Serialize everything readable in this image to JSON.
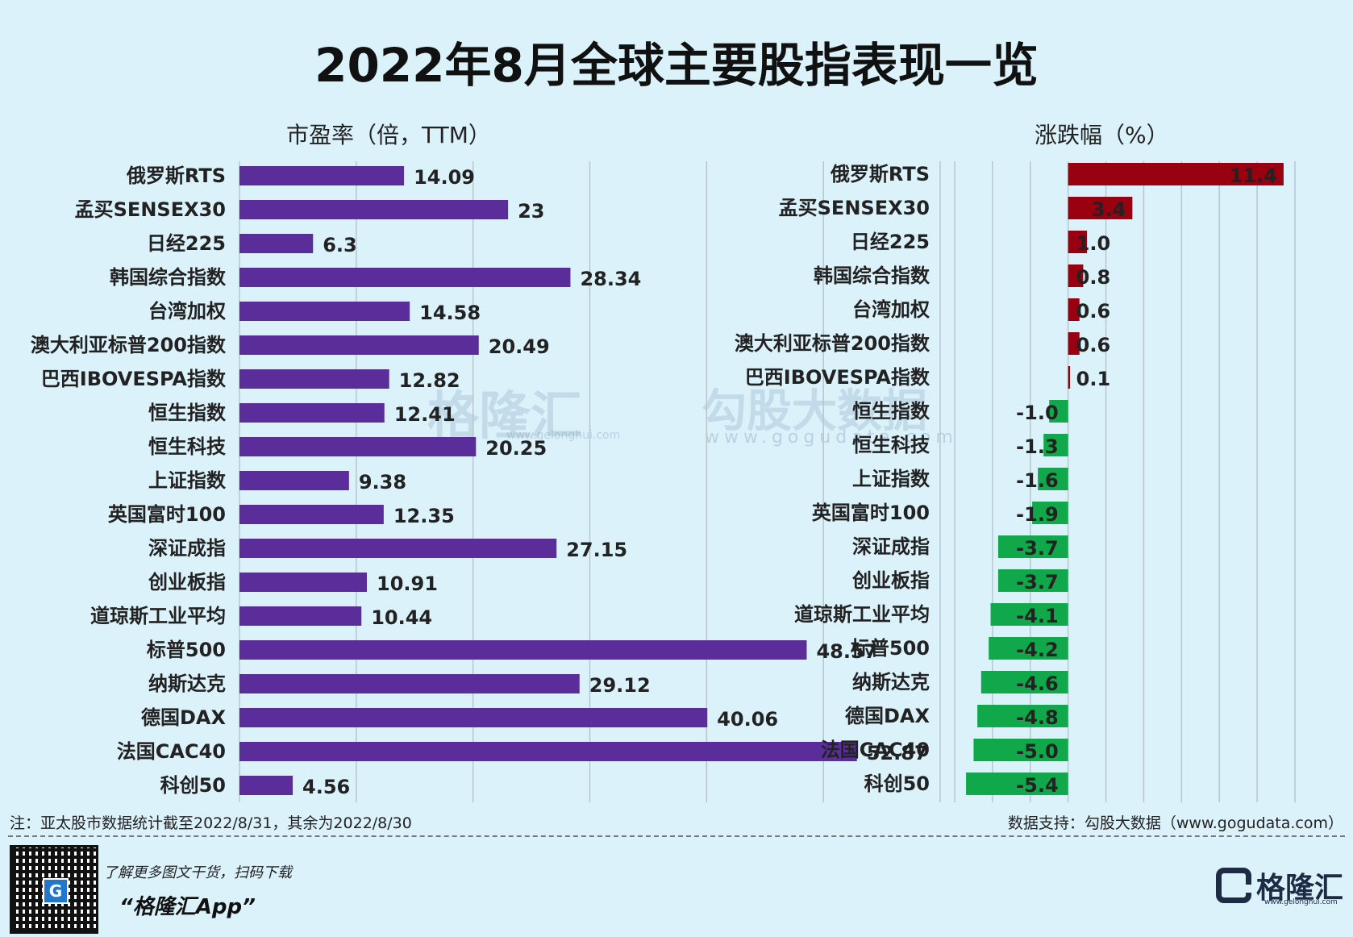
{
  "title": "2022年8月全球主要股指表现一览",
  "footnote": "注：亚太股市数据统计截至2022/8/31，其余为2022/8/30",
  "source": "数据支持：勾股大数据（www.gogudata.com）",
  "promo_line1": "了解更多图文干货，扫码下载",
  "promo_line2": "“格隆汇App”",
  "logo_text": "格隆汇",
  "logo_url": "www.gelonghui.com",
  "watermark1": "格隆汇",
  "watermark1_url": "www.gelonghui.com",
  "watermark2": "勾股大数据",
  "watermark2_url": "www.gogudata.com",
  "colors": {
    "pe_bar": "#5b2d9a",
    "gain": "#990010",
    "loss": "#11a84c",
    "grid": "#b8c6cc"
  },
  "chart_data": [
    {
      "type": "bar",
      "orientation": "horizontal",
      "title": "市盈率（倍，TTM）",
      "categories": [
        "俄罗斯RTS",
        "孟买SENSEX30",
        "日经225",
        "韩国综合指数",
        "台湾加权",
        "澳大利亚标普200指数",
        "巴西IBOVESPA指数",
        "恒生指数",
        "恒生科技",
        "上证指数",
        "英国富时100",
        "深证成指",
        "创业板指",
        "道琼斯工业平均",
        "标普500",
        "纳斯达克",
        "德国DAX",
        "法国CAC40",
        "科创50"
      ],
      "values": [
        14.09,
        23,
        6.3,
        28.34,
        14.58,
        20.49,
        12.82,
        12.41,
        20.25,
        9.38,
        12.35,
        27.15,
        10.91,
        10.44,
        48.57,
        29.12,
        40.06,
        52.87,
        4.56
      ],
      "value_labels": [
        "14.09",
        "23",
        "6.3",
        "28.34",
        "14.58",
        "20.49",
        "12.82",
        "12.41",
        "20.25",
        "9.38",
        "12.35",
        "27.15",
        "10.91",
        "10.44",
        "48.57",
        "29.12",
        "40.06",
        "52.87",
        "4.56"
      ],
      "xlim": [
        0,
        60
      ],
      "grid": true
    },
    {
      "type": "bar",
      "orientation": "horizontal",
      "title": "涨跌幅（%）",
      "categories": [
        "俄罗斯RTS",
        "孟买SENSEX30",
        "日经225",
        "韩国综合指数",
        "台湾加权",
        "澳大利亚标普200指数",
        "巴西IBOVESPA指数",
        "恒生指数",
        "恒生科技",
        "上证指数",
        "英国富时100",
        "深证成指",
        "创业板指",
        "道琼斯工业平均",
        "标普500",
        "纳斯达克",
        "德国DAX",
        "法国CAC40",
        "科创50"
      ],
      "values": [
        11.4,
        3.4,
        1.0,
        0.8,
        0.6,
        0.6,
        0.1,
        -1.0,
        -1.3,
        -1.6,
        -1.9,
        -3.7,
        -3.7,
        -4.1,
        -4.2,
        -4.6,
        -4.8,
        -5.0,
        -5.4
      ],
      "value_labels": [
        "11.4",
        "3.4",
        "1.0",
        "0.8",
        "0.6",
        "0.6",
        "0.1",
        "-1.0",
        "-1.3",
        "-1.6",
        "-1.9",
        "-3.7",
        "-3.7",
        "-4.1",
        "-4.2",
        "-4.6",
        "-4.8",
        "-5.0",
        "-5.4"
      ],
      "xlim": [
        -6,
        12
      ],
      "grid": true
    }
  ]
}
